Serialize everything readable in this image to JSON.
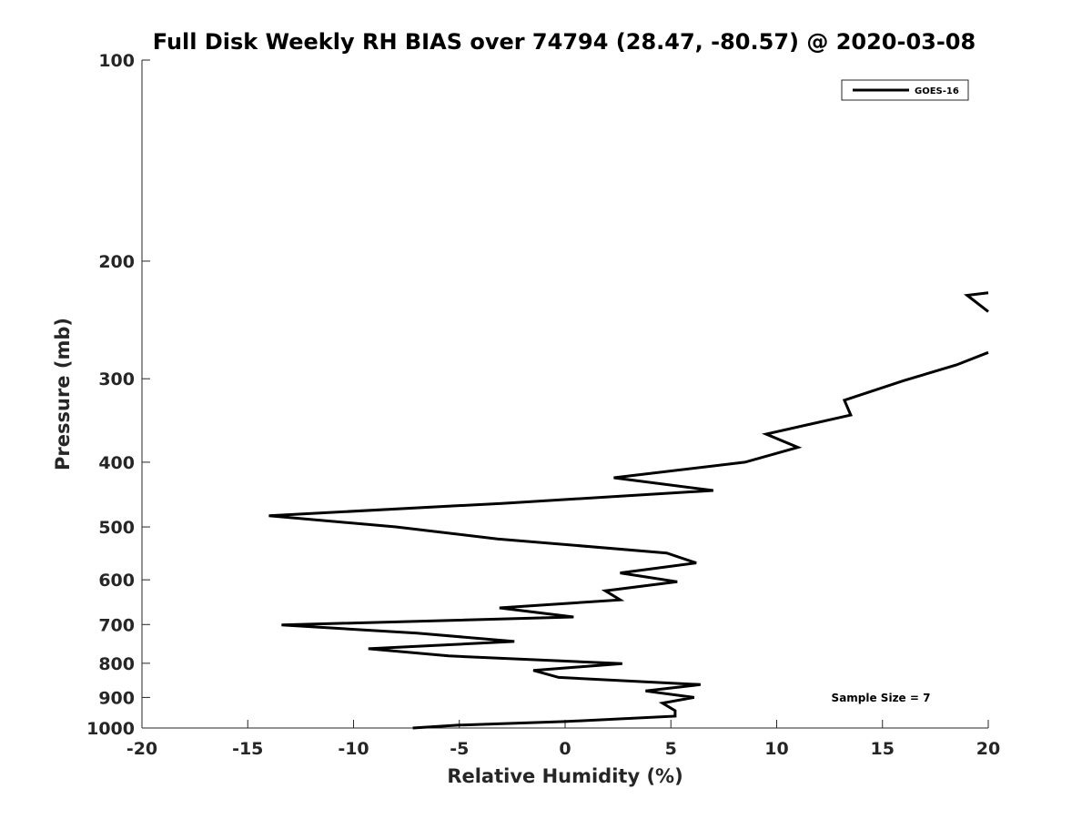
{
  "chart_data": {
    "type": "line",
    "title": "Full Disk Weekly RH BIAS over 74794 (28.47, -80.57) @ 2020-03-08",
    "xlabel": "Relative Humidity (%)",
    "ylabel": "Pressure (mb)",
    "xlim": [
      -20,
      20
    ],
    "ylim": [
      100,
      1000
    ],
    "y_scale": "log",
    "y_reversed": true,
    "x_ticks": [
      -20,
      -15,
      -10,
      -5,
      0,
      5,
      10,
      15,
      20
    ],
    "y_ticks": [
      100,
      200,
      300,
      400,
      500,
      600,
      700,
      800,
      900,
      1000
    ],
    "grid": false,
    "legend_position": "top-right",
    "annotation": "Sample Size = 7",
    "series": [
      {
        "name": "GOES-16",
        "color": "#000000",
        "segments": [
          [
            {
              "x": 20.0,
              "y": 223
            },
            {
              "x": 19.0,
              "y": 225
            },
            {
              "x": 20.0,
              "y": 238
            }
          ],
          [
            {
              "x": 20.0,
              "y": 274
            },
            {
              "x": 18.5,
              "y": 286
            },
            {
              "x": 16.0,
              "y": 302
            },
            {
              "x": 13.2,
              "y": 323
            },
            {
              "x": 13.5,
              "y": 340
            },
            {
              "x": 9.5,
              "y": 363
            },
            {
              "x": 11.0,
              "y": 380
            },
            {
              "x": 8.5,
              "y": 400
            },
            {
              "x": 2.3,
              "y": 422
            },
            {
              "x": 7.0,
              "y": 441
            },
            {
              "x": -3.0,
              "y": 461
            },
            {
              "x": -14.0,
              "y": 481
            },
            {
              "x": -8.0,
              "y": 500
            },
            {
              "x": -3.2,
              "y": 521
            },
            {
              "x": 4.8,
              "y": 547
            },
            {
              "x": 6.2,
              "y": 566
            },
            {
              "x": 2.6,
              "y": 586
            },
            {
              "x": 5.3,
              "y": 604
            },
            {
              "x": 1.9,
              "y": 623
            },
            {
              "x": 2.6,
              "y": 643
            },
            {
              "x": -3.1,
              "y": 661
            },
            {
              "x": 0.4,
              "y": 682
            },
            {
              "x": -13.4,
              "y": 701
            },
            {
              "x": -7.0,
              "y": 721
            },
            {
              "x": -2.4,
              "y": 742
            },
            {
              "x": -9.3,
              "y": 761
            },
            {
              "x": -5.5,
              "y": 780
            },
            {
              "x": 2.7,
              "y": 801
            },
            {
              "x": -1.5,
              "y": 820
            },
            {
              "x": -0.3,
              "y": 840
            },
            {
              "x": 6.4,
              "y": 861
            },
            {
              "x": 3.8,
              "y": 880
            },
            {
              "x": 6.1,
              "y": 900
            },
            {
              "x": 4.6,
              "y": 918
            },
            {
              "x": 5.2,
              "y": 942
            },
            {
              "x": 5.2,
              "y": 960
            },
            {
              "x": 0.0,
              "y": 978
            },
            {
              "x": -5.0,
              "y": 990
            },
            {
              "x": -7.2,
              "y": 1000
            }
          ]
        ]
      }
    ]
  }
}
